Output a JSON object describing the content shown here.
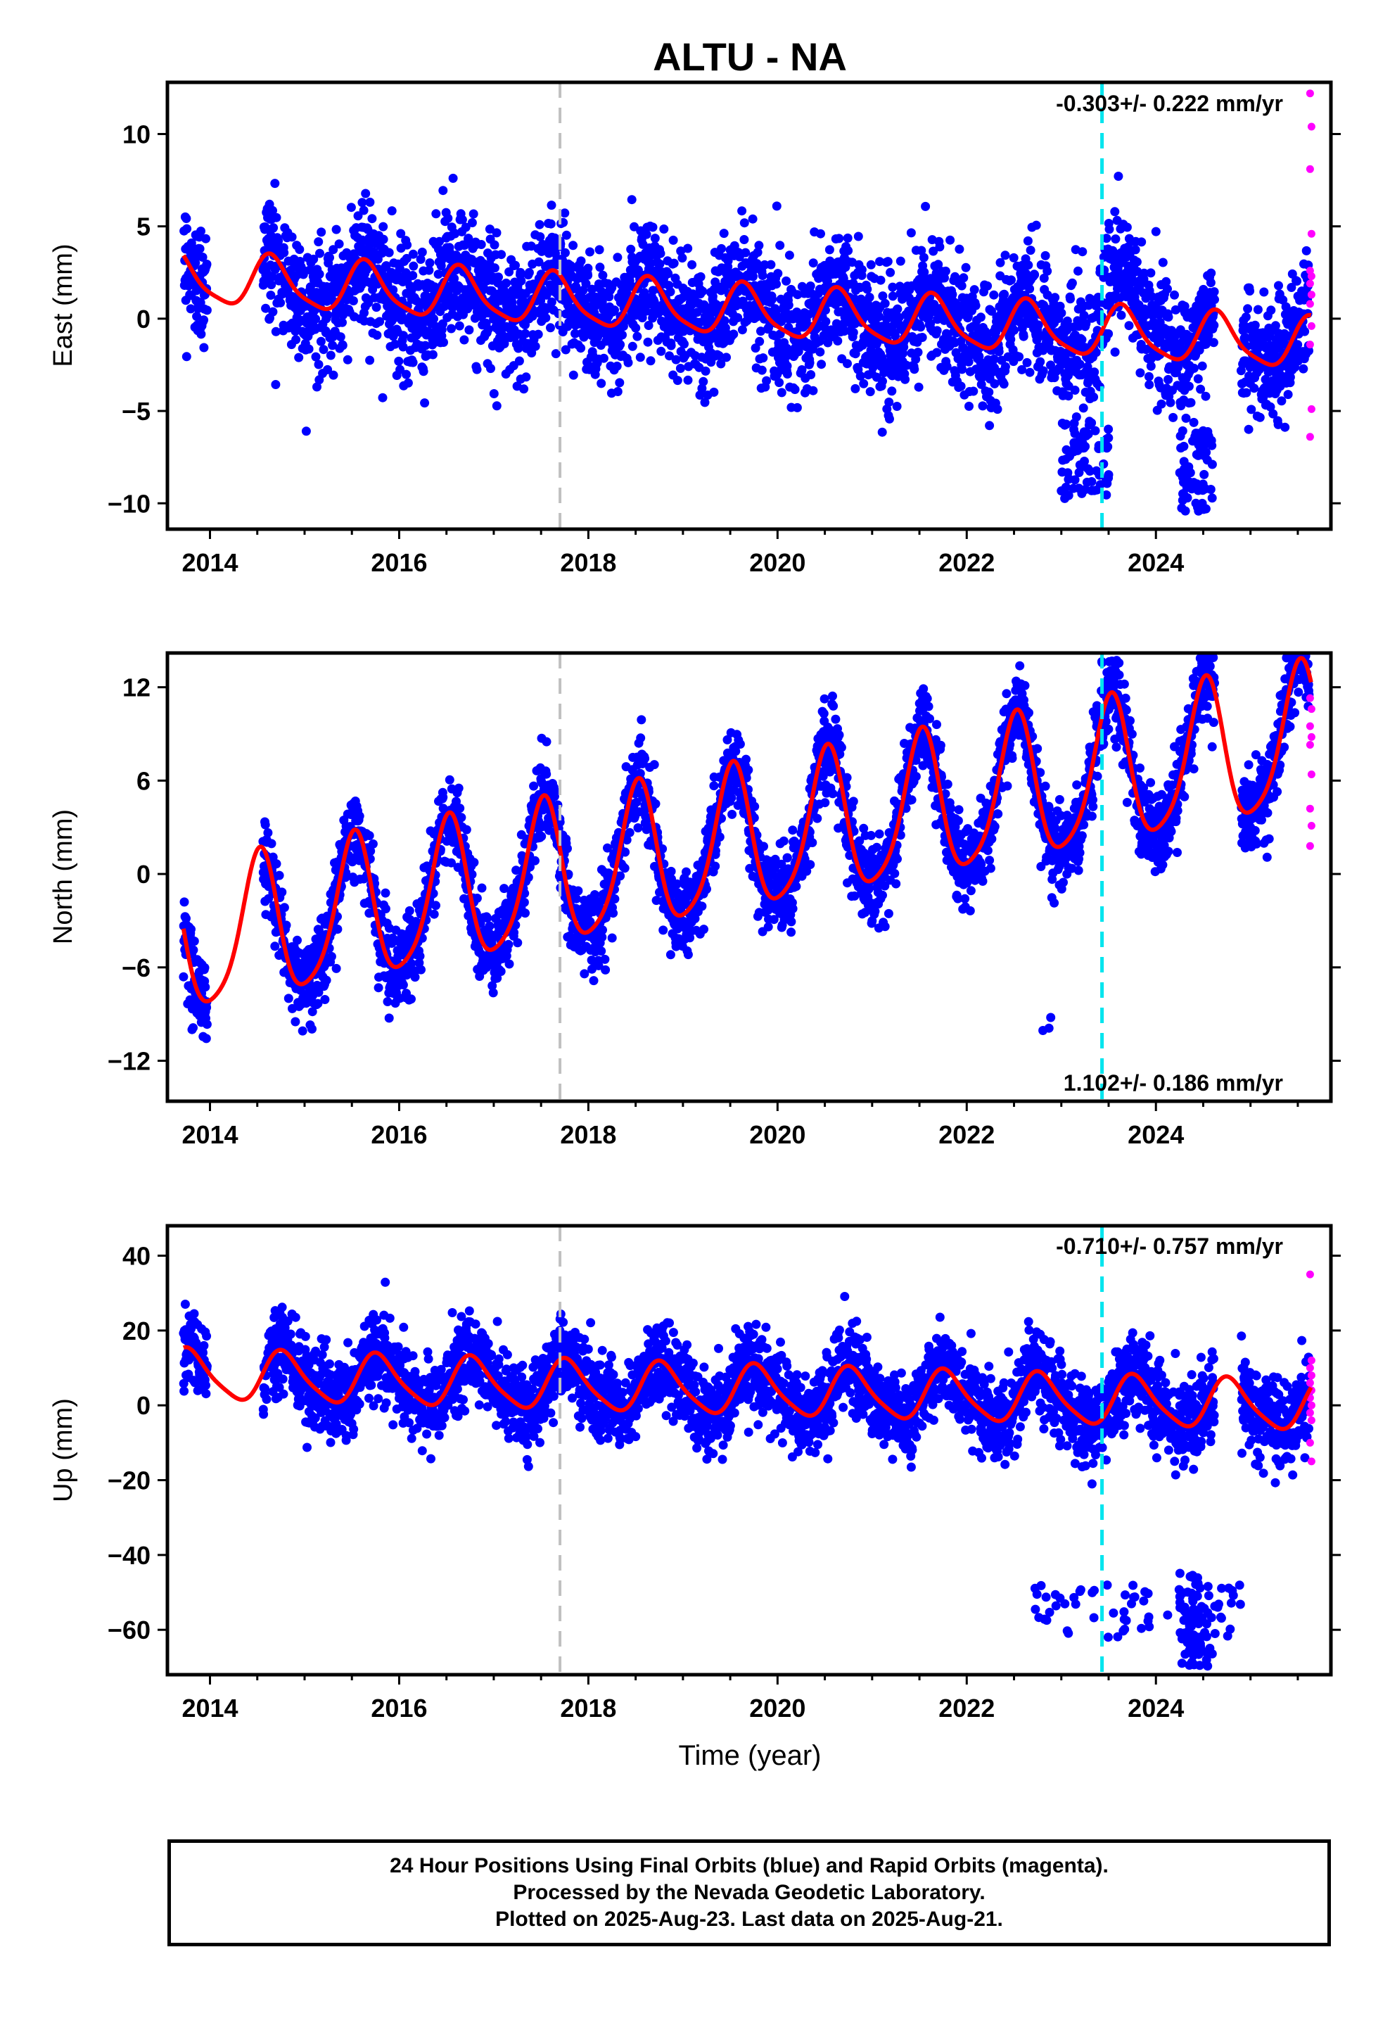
{
  "chart_data": {
    "title": "ALTU - NA",
    "xlabel": "Time (year)",
    "xlim": [
      2013.55,
      2025.85
    ],
    "x_ticks": [
      "2014",
      "2016",
      "2018",
      "2020",
      "2022",
      "2024"
    ],
    "vertical_lines": [
      {
        "x": 2017.7,
        "color": "#c0c0c0",
        "style": "dashed"
      },
      {
        "x": 2023.43,
        "color": "#00e5ee",
        "style": "dashed"
      }
    ],
    "series_colors": {
      "final_orbits": "#0000ff",
      "rapid_orbits": "#ff00ff",
      "model": "#ff0000"
    },
    "panels": [
      {
        "type": "scatter",
        "component": "east",
        "ylabel": "East (mm)",
        "ylim": [
          -11.4,
          12.8
        ],
        "y_ticks": [
          "10",
          "5",
          "0",
          "−5",
          "−10"
        ],
        "rate_text": "-0.303+/- 0.222 mm/yr",
        "rate_position": "top-right",
        "seasonal_model": {
          "offset": 2.1,
          "trend": -0.303,
          "annual_amp": 1.35,
          "annual_peak": 0.65,
          "semiannual_amp": 0.3,
          "semiannual_phase": 0.1
        },
        "scatter_sigma": 1.7,
        "outlier_clusters": [
          {
            "x_range": [
              2024.25,
              2024.6
            ],
            "y_range": [
              -10.5,
              -6.0
            ]
          },
          {
            "x_range": [
              2023.0,
              2023.5
            ],
            "y_range": [
              -9.8,
              -5.5
            ]
          }
        ],
        "rapid_points": [
          12.2,
          10.4,
          8.1,
          4.6,
          2.6,
          2.3,
          1.9,
          1.3,
          0.8,
          -0.4,
          -1.4,
          -4.9,
          -6.4
        ]
      },
      {
        "type": "scatter",
        "component": "north",
        "ylabel": "North (mm)",
        "ylim": [
          -14.6,
          14.2
        ],
        "y_ticks": [
          "12",
          "6",
          "0",
          "−6",
          "−12"
        ],
        "rate_text": "1.102+/- 0.186 mm/yr",
        "rate_position": "bottom-right",
        "seasonal_model": {
          "offset": -4.2,
          "trend": 1.102,
          "annual_amp": 4.6,
          "annual_peak": 0.52,
          "semiannual_amp": 0.8,
          "semiannual_phase": 0.05
        },
        "scatter_sigma": 1.3,
        "outlier_clusters": [
          {
            "x_range": [
              2022.75,
              2022.95
            ],
            "y_range": [
              -10.2,
              -9.2
            ]
          }
        ],
        "rapid_points": [
          11.3,
          10.6,
          9.5,
          8.8,
          8.3,
          6.4,
          4.2,
          3.1,
          1.8
        ]
      },
      {
        "type": "scatter",
        "component": "up",
        "ylabel": "Up (mm)",
        "ylim": [
          -72,
          48
        ],
        "y_ticks": [
          "40",
          "20",
          "0",
          "−20",
          "−40",
          "−60"
        ],
        "rate_text": "-0.710+/- 0.757 mm/yr",
        "rate_position": "top-right",
        "seasonal_model": {
          "offset": 8.0,
          "trend": -0.71,
          "annual_amp": 6.5,
          "annual_peak": 0.78,
          "semiannual_amp": 1.2,
          "semiannual_phase": 0.2
        },
        "scatter_sigma": 5.5,
        "outlier_clusters": [
          {
            "x_range": [
              2024.25,
              2024.6
            ],
            "y_range": [
              -70,
              -44
            ]
          },
          {
            "x_range": [
              2022.7,
              2024.9
            ],
            "y_range": [
              -62,
              -48
            ]
          }
        ],
        "rapid_points": [
          35,
          12,
          10,
          8,
          6,
          4,
          2,
          0,
          -2,
          -4,
          -10,
          -15
        ]
      }
    ]
  },
  "footer": {
    "line1": "24 Hour Positions Using Final Orbits (blue) and Rapid Orbits (magenta).",
    "line2": "Processed by the Nevada Geodetic Laboratory.",
    "line3": "Plotted on 2025-Aug-23. Last data on 2025-Aug-21."
  }
}
